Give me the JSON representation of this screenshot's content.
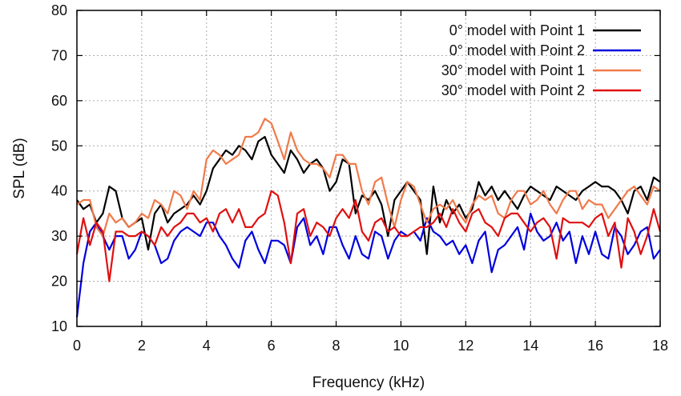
{
  "chart_data": {
    "type": "line",
    "xlabel": "Frequency (kHz)",
    "ylabel": "SPL (dB)",
    "xlim": [
      0,
      18
    ],
    "ylim": [
      10,
      80
    ],
    "xticks": [
      0,
      2,
      4,
      6,
      8,
      10,
      12,
      14,
      16,
      18
    ],
    "yticks": [
      10,
      20,
      30,
      40,
      50,
      60,
      70,
      80
    ],
    "grid": true,
    "legend_position": "top-right",
    "x": [
      0.0,
      0.2,
      0.4,
      0.6,
      0.8,
      1.0,
      1.2,
      1.4,
      1.6,
      1.8,
      2.0,
      2.2,
      2.4,
      2.6,
      2.8,
      3.0,
      3.2,
      3.4,
      3.6,
      3.8,
      4.0,
      4.2,
      4.4,
      4.6,
      4.8,
      5.0,
      5.2,
      5.4,
      5.6,
      5.8,
      6.0,
      6.2,
      6.4,
      6.6,
      6.8,
      7.0,
      7.2,
      7.4,
      7.6,
      7.8,
      8.0,
      8.2,
      8.4,
      8.6,
      8.8,
      9.0,
      9.2,
      9.4,
      9.6,
      9.8,
      10.0,
      10.2,
      10.4,
      10.6,
      10.8,
      11.0,
      11.2,
      11.4,
      11.6,
      11.8,
      12.0,
      12.2,
      12.4,
      12.6,
      12.8,
      13.0,
      13.2,
      13.4,
      13.6,
      13.8,
      14.0,
      14.2,
      14.4,
      14.6,
      14.8,
      15.0,
      15.2,
      15.4,
      15.6,
      15.8,
      16.0,
      16.2,
      16.4,
      16.6,
      16.8,
      17.0,
      17.2,
      17.4,
      17.6,
      17.8,
      18.0
    ],
    "series": [
      {
        "name": "0° model with Point 1",
        "color": "#000000",
        "values": [
          38,
          36,
          37,
          33,
          35,
          41,
          40,
          34,
          32,
          33,
          34,
          27,
          35,
          37,
          33,
          35,
          36,
          37,
          39,
          37,
          40,
          45,
          47,
          49,
          48,
          50,
          49,
          47,
          51,
          52,
          48,
          46,
          44,
          49,
          47,
          44,
          46,
          47,
          45,
          40,
          42,
          47,
          46,
          35,
          39,
          38,
          40,
          37,
          30,
          38,
          40,
          42,
          40,
          38,
          26,
          41,
          33,
          38,
          35,
          37,
          34,
          36,
          42,
          39,
          41,
          38,
          40,
          38,
          36,
          39,
          41,
          40,
          39,
          38,
          41,
          40,
          39,
          38,
          40,
          41,
          42,
          41,
          41,
          40,
          38,
          35,
          40,
          41,
          38,
          43,
          42
        ]
      },
      {
        "name": "0° model with Point 2",
        "color": "#0000dd",
        "values": [
          12,
          24,
          31,
          33,
          30,
          27,
          30,
          30,
          25,
          27,
          31,
          30,
          28,
          24,
          25,
          29,
          31,
          32,
          31,
          30,
          33,
          33,
          30,
          28,
          25,
          23,
          29,
          31,
          27,
          24,
          29,
          29,
          28,
          24,
          32,
          34,
          28,
          30,
          26,
          32,
          32,
          28,
          25,
          30,
          26,
          25,
          31,
          30,
          25,
          29,
          31,
          30,
          31,
          29,
          34,
          31,
          30,
          28,
          29,
          26,
          28,
          24,
          29,
          31,
          22,
          27,
          28,
          30,
          32,
          27,
          35,
          31,
          29,
          30,
          33,
          29,
          31,
          24,
          30,
          26,
          31,
          26,
          25,
          32,
          30,
          26,
          28,
          31,
          32,
          25,
          27
        ]
      },
      {
        "name": "30° model with Point 1",
        "color": "#f07a4a",
        "values": [
          37,
          38,
          38,
          32,
          30,
          35,
          33,
          34,
          32,
          33,
          35,
          34,
          38,
          37,
          35,
          40,
          39,
          36,
          40,
          38,
          47,
          49,
          48,
          46,
          47,
          48,
          52,
          52,
          53,
          56,
          55,
          51,
          47,
          53,
          49,
          47,
          46,
          46,
          45,
          43,
          48,
          48,
          46,
          46,
          40,
          37,
          42,
          43,
          37,
          32,
          38,
          42,
          41,
          37,
          33,
          36,
          37,
          36,
          38,
          35,
          33,
          37,
          39,
          38,
          39,
          35,
          34,
          38,
          40,
          40,
          37,
          38,
          40,
          37,
          35,
          38,
          40,
          40,
          36,
          38,
          37,
          37,
          34,
          36,
          38,
          40,
          41,
          39,
          37,
          41,
          40
        ]
      },
      {
        "name": "30° model with Point 2",
        "color": "#e01010",
        "values": [
          26,
          34,
          28,
          33,
          31,
          20,
          31,
          31,
          30,
          30,
          31,
          30,
          28,
          32,
          30,
          32,
          33,
          35,
          35,
          33,
          34,
          31,
          35,
          36,
          33,
          36,
          32,
          32,
          34,
          35,
          40,
          39,
          33,
          24,
          35,
          36,
          30,
          33,
          32,
          30,
          34,
          36,
          34,
          38,
          31,
          29,
          33,
          34,
          31,
          32,
          30,
          30,
          31,
          32,
          32,
          33,
          35,
          32,
          36,
          33,
          31,
          35,
          36,
          33,
          32,
          30,
          34,
          35,
          35,
          33,
          31,
          33,
          34,
          32,
          25,
          34,
          33,
          33,
          33,
          32,
          34,
          35,
          30,
          33,
          23,
          34,
          31,
          26,
          30,
          36,
          31
        ]
      }
    ]
  }
}
